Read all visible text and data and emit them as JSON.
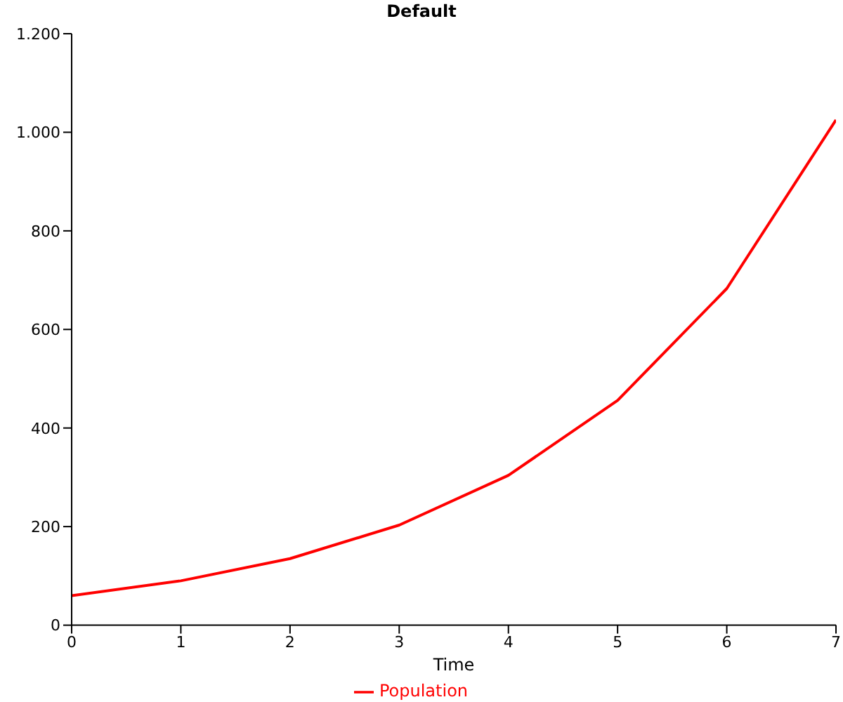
{
  "chart_data": {
    "type": "line",
    "title": "Default",
    "xlabel": "Time",
    "x": [
      0,
      1,
      2,
      3,
      4,
      5,
      6,
      7
    ],
    "series": [
      {
        "name": "Population",
        "color": "#ff0000",
        "values": [
          60,
          90,
          135,
          203,
          304,
          456,
          683,
          1025
        ]
      }
    ],
    "xlim": [
      0,
      7
    ],
    "xticks": [
      0,
      1,
      2,
      3,
      4,
      5,
      6,
      7
    ],
    "ylim": [
      0,
      1200
    ],
    "yticks": [
      0,
      200,
      400,
      600,
      800,
      {
        "value": 1000,
        "label": "1.000"
      },
      {
        "value": 1200,
        "label": "1.200"
      }
    ],
    "grid": false,
    "legend": "bottom",
    "marker": "none",
    "line_style": "solid"
  }
}
